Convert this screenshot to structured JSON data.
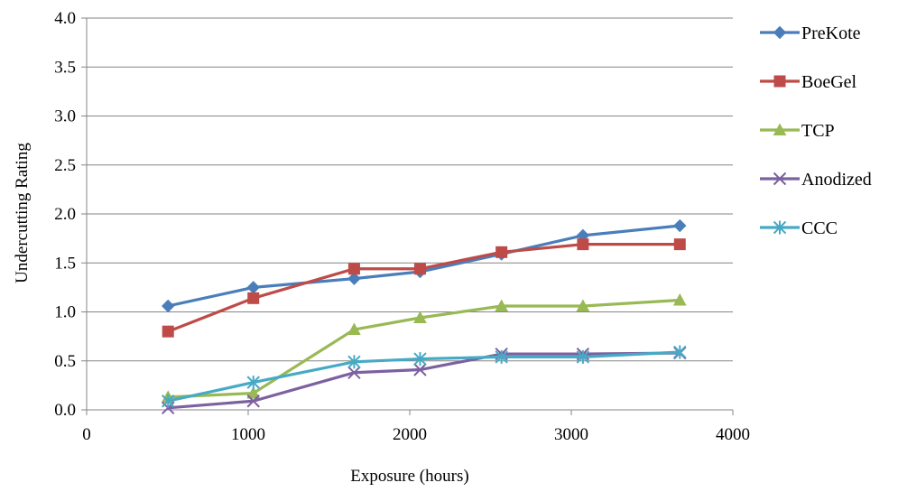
{
  "chart_data": {
    "type": "line",
    "xlabel": "Exposure (hours)",
    "ylabel": "Undercutting Rating",
    "xlim": [
      0,
      4000
    ],
    "ylim": [
      0,
      4.0
    ],
    "x_ticks": [
      "0",
      "1000",
      "2000",
      "3000",
      "4000"
    ],
    "y_ticks": [
      "0.0",
      "0.5",
      "1.0",
      "1.5",
      "2.0",
      "2.5",
      "3.0",
      "3.5",
      "4.0"
    ],
    "grid": "horizontal",
    "legend_position": "right",
    "series": [
      {
        "name": "PreKote",
        "color": "#4a7ebb",
        "marker": "diamond",
        "x": [
          504,
          1032,
          1656,
          2064,
          2568,
          3072,
          3672
        ],
        "y": [
          1.06,
          1.25,
          1.34,
          1.41,
          1.59,
          1.78,
          1.88
        ]
      },
      {
        "name": "BoeGel",
        "color": "#be4b48",
        "marker": "square",
        "x": [
          504,
          1032,
          1656,
          2064,
          2568,
          3072,
          3672
        ],
        "y": [
          0.8,
          1.14,
          1.44,
          1.44,
          1.61,
          1.69,
          1.69
        ]
      },
      {
        "name": "TCP",
        "color": "#98b954",
        "marker": "triangle",
        "x": [
          504,
          1032,
          1656,
          2064,
          2568,
          3072,
          3672
        ],
        "y": [
          0.13,
          0.17,
          0.82,
          0.94,
          1.06,
          1.06,
          1.12
        ]
      },
      {
        "name": "Anodized",
        "color": "#7d60a0",
        "marker": "x",
        "x": [
          504,
          1032,
          1656,
          2064,
          2568,
          3072,
          3672
        ],
        "y": [
          0.02,
          0.09,
          0.38,
          0.41,
          0.57,
          0.57,
          0.58
        ]
      },
      {
        "name": "CCC",
        "color": "#46aac5",
        "marker": "star",
        "x": [
          504,
          1032,
          1656,
          2064,
          2568,
          3072,
          3672
        ],
        "y": [
          0.09,
          0.28,
          0.49,
          0.52,
          0.54,
          0.54,
          0.59
        ]
      }
    ]
  }
}
